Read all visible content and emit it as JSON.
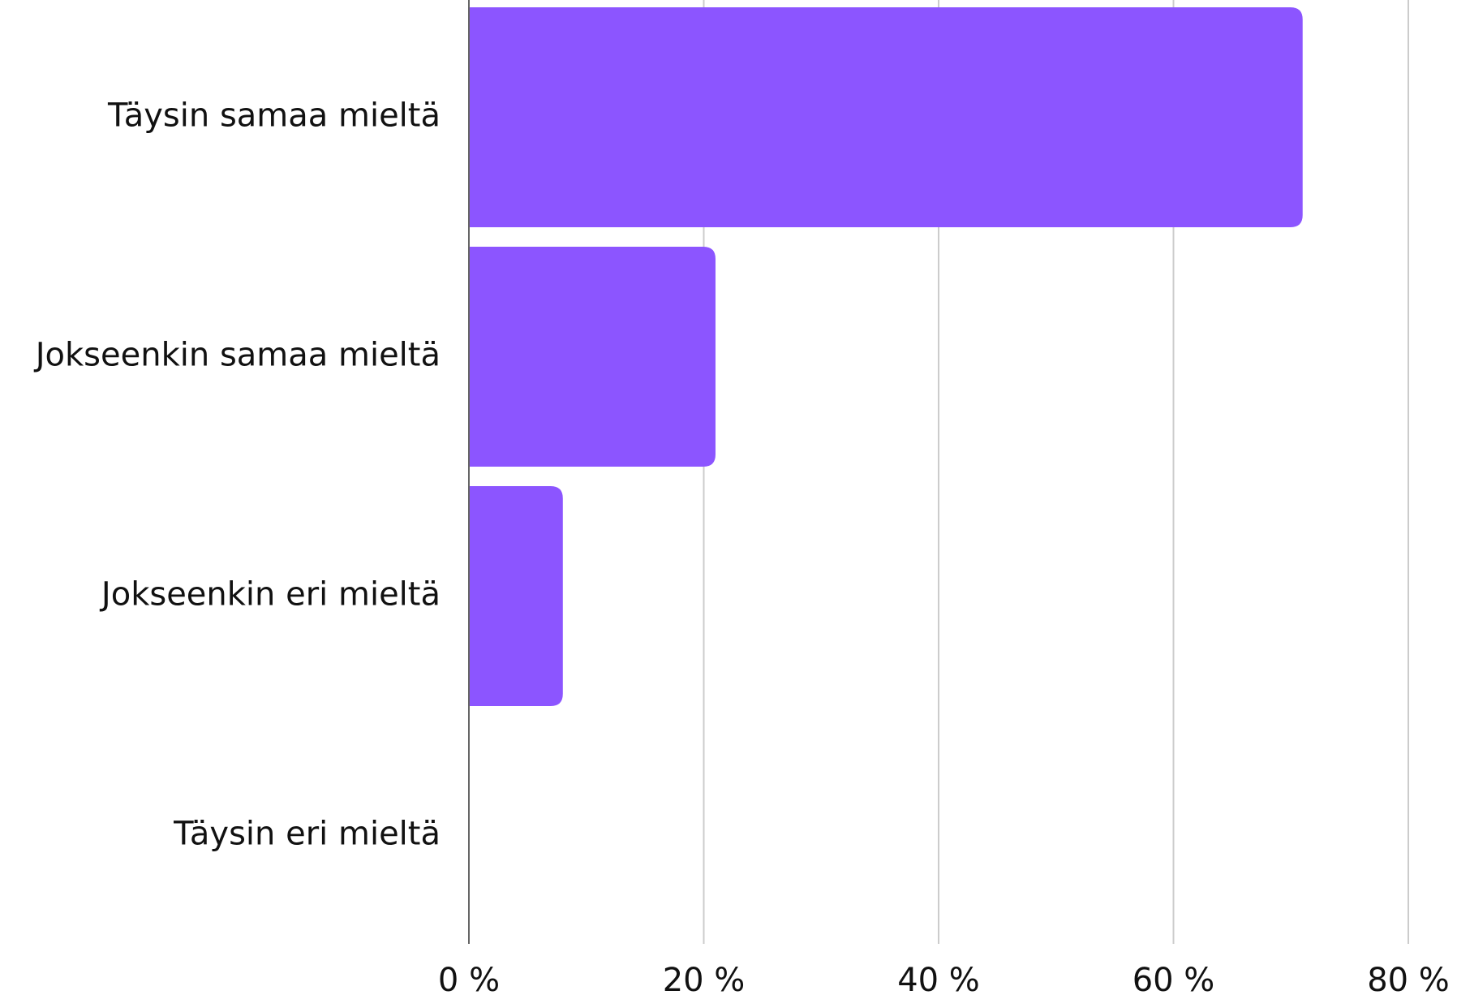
{
  "chart_data": {
    "type": "bar",
    "orientation": "horizontal",
    "categories": [
      "Täysin samaa mieltä",
      "Jokseenkin samaa mieltä",
      "Jokseenkin eri mieltä",
      "Täysin eri mieltä"
    ],
    "values": [
      71,
      21,
      8,
      0
    ],
    "color": "#8c55ff",
    "xlim": [
      0,
      80
    ],
    "xticks": [
      {
        "value": 0,
        "label": "0 %"
      },
      {
        "value": 20,
        "label": "20 %"
      },
      {
        "value": 40,
        "label": "40 %"
      },
      {
        "value": 60,
        "label": "60 %"
      },
      {
        "value": 80,
        "label": "80 %"
      }
    ],
    "grid": true
  }
}
